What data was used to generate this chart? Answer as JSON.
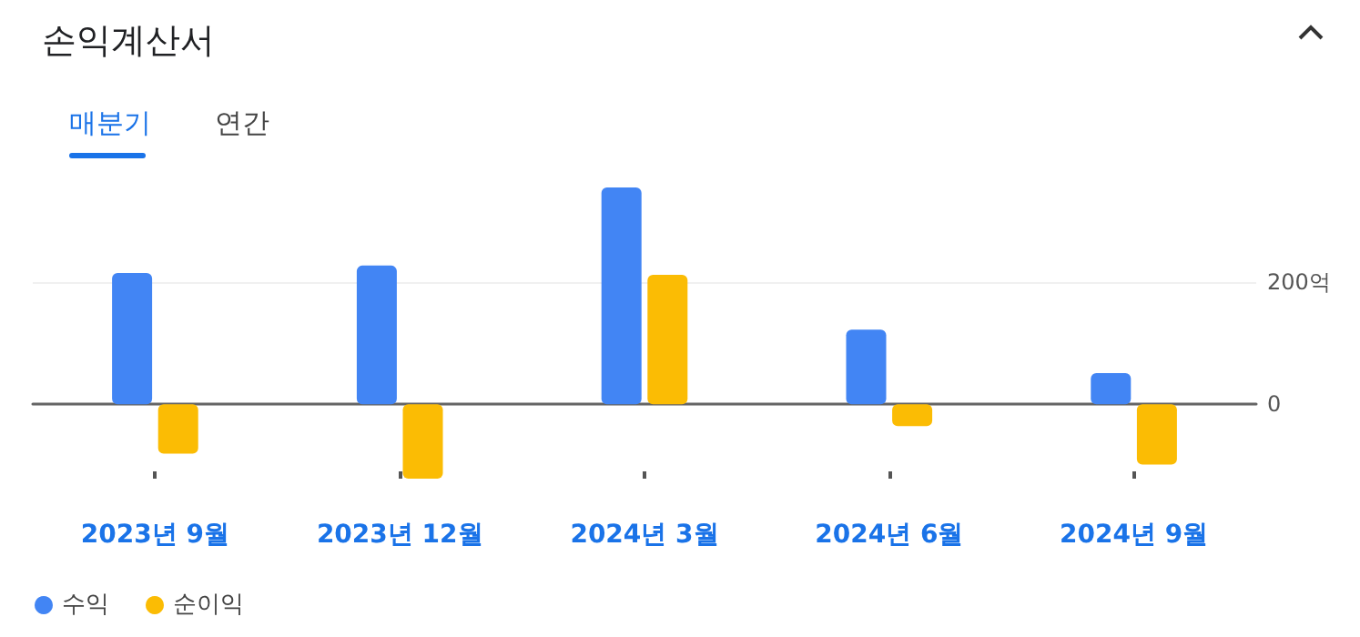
{
  "chart_data": {
    "type": "bar",
    "title": "손익계산서",
    "annotations": [
      "매분기",
      "연간"
    ],
    "categories": [
      "2023년 9월",
      "2023년 12월",
      "2024년 3월",
      "2024년 6월",
      "2024년 9월"
    ],
    "series": [
      {
        "name": "수익",
        "color": "#4285f4",
        "values": [
          215,
          227,
          355,
          122,
          51
        ]
      },
      {
        "name": "순이익",
        "color": "#fbbc04",
        "values": [
          -81,
          -122,
          212,
          -36,
          -99
        ]
      }
    ],
    "ylim": [
      -122,
      355
    ],
    "yticks": [
      0,
      {
        "value": 200,
        "label": "200억"
      }
    ],
    "grid": "y",
    "legend": "bottom left"
  }
}
